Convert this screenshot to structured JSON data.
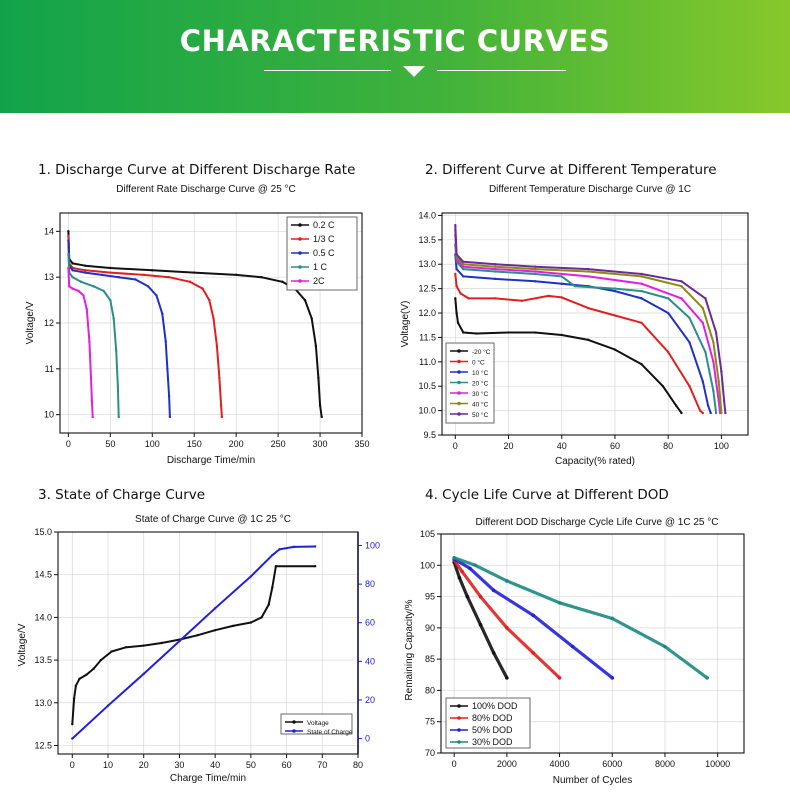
{
  "header": {
    "title": "CHARACTERISTIC CURVES"
  },
  "sections": [
    {
      "title": "1. Discharge Curve at Different Discharge Rate"
    },
    {
      "title": "2. Different Curve at Different Temperature"
    },
    {
      "title": "3. State of Charge Curve"
    },
    {
      "title": "4. Cycle Life Curve at Different DOD"
    }
  ],
  "chart_data": [
    {
      "type": "line",
      "title": "Different Rate Discharge Curve @ 25 °C",
      "xlabel": "Discharge Time/min",
      "ylabel": "Voltage/V",
      "xlim": [
        -10,
        350
      ],
      "ylim": [
        9.6,
        14.4
      ],
      "xticks": [
        0,
        50,
        100,
        150,
        200,
        250,
        300,
        350
      ],
      "yticks": [
        10,
        11,
        12,
        13,
        14
      ],
      "legend": "top-right",
      "series": [
        {
          "name": "0.2 C",
          "color": "#111111",
          "points": [
            [
              0,
              14
            ],
            [
              1,
              13.4
            ],
            [
              5,
              13.3
            ],
            [
              20,
              13.25
            ],
            [
              50,
              13.2
            ],
            [
              100,
              13.15
            ],
            [
              150,
              13.1
            ],
            [
              200,
              13.05
            ],
            [
              230,
              13
            ],
            [
              255,
              12.9
            ],
            [
              270,
              12.75
            ],
            [
              282,
              12.5
            ],
            [
              290,
              12.1
            ],
            [
              295,
              11.5
            ],
            [
              298,
              10.8
            ],
            [
              300,
              10.2
            ],
            [
              302,
              9.95
            ]
          ]
        },
        {
          "name": "1/3 C",
          "color": "#e02020",
          "points": [
            [
              0,
              13.9
            ],
            [
              1,
              13.3
            ],
            [
              5,
              13.2
            ],
            [
              20,
              13.15
            ],
            [
              50,
              13.1
            ],
            [
              90,
              13.05
            ],
            [
              120,
              13
            ],
            [
              145,
              12.9
            ],
            [
              160,
              12.75
            ],
            [
              168,
              12.5
            ],
            [
              173,
              12.1
            ],
            [
              177,
              11.5
            ],
            [
              180,
              10.8
            ],
            [
              182,
              10.2
            ],
            [
              183,
              9.95
            ]
          ]
        },
        {
          "name": "0.5 C",
          "color": "#2030c8",
          "points": [
            [
              0,
              13.8
            ],
            [
              1,
              13.25
            ],
            [
              5,
              13.15
            ],
            [
              20,
              13.1
            ],
            [
              40,
              13.05
            ],
            [
              60,
              13
            ],
            [
              80,
              12.95
            ],
            [
              95,
              12.8
            ],
            [
              105,
              12.6
            ],
            [
              112,
              12.2
            ],
            [
              116,
              11.6
            ],
            [
              118,
              11
            ],
            [
              120,
              10.4
            ],
            [
              121,
              9.95
            ]
          ]
        },
        {
          "name": "1 C",
          "color": "#2a8f8a",
          "points": [
            [
              0,
              13.5
            ],
            [
              1,
              13.1
            ],
            [
              5,
              13
            ],
            [
              15,
              12.9
            ],
            [
              30,
              12.8
            ],
            [
              42,
              12.7
            ],
            [
              50,
              12.5
            ],
            [
              54,
              12.1
            ],
            [
              57,
              11.4
            ],
            [
              59,
              10.6
            ],
            [
              60,
              9.95
            ]
          ]
        },
        {
          "name": "2C",
          "color": "#e020e0",
          "points": [
            [
              0,
              13.2
            ],
            [
              1,
              12.8
            ],
            [
              5,
              12.75
            ],
            [
              12,
              12.7
            ],
            [
              18,
              12.6
            ],
            [
              22,
              12.3
            ],
            [
              25,
              11.6
            ],
            [
              27,
              10.8
            ],
            [
              28,
              10.3
            ],
            [
              29,
              9.95
            ]
          ]
        }
      ]
    },
    {
      "type": "line",
      "title": "Different Temperature Discharge Curve @ 1C",
      "xlabel": "Capacity(% rated)",
      "ylabel": "Voltage(V)",
      "xlim": [
        -5,
        110
      ],
      "ylim": [
        9.5,
        14.05
      ],
      "xticks": [
        0,
        20,
        40,
        60,
        80,
        100
      ],
      "yticks": [
        9.5,
        10.0,
        10.5,
        11.0,
        11.5,
        12.0,
        12.5,
        13.0,
        13.5,
        14.0
      ],
      "legend": "bottom-left",
      "series": [
        {
          "name": "-20 °C",
          "color": "#111111",
          "points": [
            [
              0,
              12.3
            ],
            [
              0.5,
              12
            ],
            [
              1,
              11.8
            ],
            [
              3,
              11.6
            ],
            [
              8,
              11.58
            ],
            [
              20,
              11.6
            ],
            [
              30,
              11.6
            ],
            [
              40,
              11.55
            ],
            [
              50,
              11.45
            ],
            [
              60,
              11.25
            ],
            [
              70,
              10.95
            ],
            [
              78,
              10.5
            ],
            [
              83,
              10.1
            ],
            [
              85,
              9.95
            ]
          ]
        },
        {
          "name": "0 °C",
          "color": "#e02020",
          "points": [
            [
              0,
              12.8
            ],
            [
              0.5,
              12.55
            ],
            [
              2,
              12.4
            ],
            [
              5,
              12.3
            ],
            [
              15,
              12.3
            ],
            [
              25,
              12.25
            ],
            [
              35,
              12.35
            ],
            [
              40,
              12.32
            ],
            [
              50,
              12.1
            ],
            [
              60,
              11.95
            ],
            [
              70,
              11.8
            ],
            [
              80,
              11.2
            ],
            [
              88,
              10.5
            ],
            [
              92,
              10
            ],
            [
              93,
              9.95
            ]
          ]
        },
        {
          "name": "10 °C",
          "color": "#2030c8",
          "points": [
            [
              0,
              13.2
            ],
            [
              0.5,
              12.9
            ],
            [
              3,
              12.75
            ],
            [
              15,
              12.7
            ],
            [
              30,
              12.65
            ],
            [
              40,
              12.6
            ],
            [
              50,
              12.55
            ],
            [
              60,
              12.45
            ],
            [
              70,
              12.3
            ],
            [
              80,
              12
            ],
            [
              88,
              11.4
            ],
            [
              93,
              10.6
            ],
            [
              95,
              10.1
            ],
            [
              96,
              9.95
            ]
          ]
        },
        {
          "name": "20 °C",
          "color": "#2a8f8a",
          "points": [
            [
              0,
              13.4
            ],
            [
              0.5,
              13.05
            ],
            [
              3,
              12.9
            ],
            [
              15,
              12.85
            ],
            [
              30,
              12.8
            ],
            [
              40,
              12.75
            ],
            [
              45,
              12.55
            ],
            [
              60,
              12.5
            ],
            [
              70,
              12.45
            ],
            [
              80,
              12.3
            ],
            [
              88,
              11.9
            ],
            [
              94,
              11.2
            ],
            [
              97,
              10.4
            ],
            [
              98,
              9.95
            ]
          ]
        },
        {
          "name": "30 °C",
          "color": "#e020e0",
          "points": [
            [
              0,
              13.6
            ],
            [
              0.5,
              13.1
            ],
            [
              3,
              12.95
            ],
            [
              15,
              12.9
            ],
            [
              30,
              12.85
            ],
            [
              50,
              12.75
            ],
            [
              70,
              12.6
            ],
            [
              85,
              12.3
            ],
            [
              93,
              11.8
            ],
            [
              97,
              11
            ],
            [
              99,
              10.2
            ],
            [
              99.5,
              9.95
            ]
          ]
        },
        {
          "name": "40 °C",
          "color": "#8a8a10",
          "points": [
            [
              0,
              13.7
            ],
            [
              0.5,
              13.15
            ],
            [
              3,
              13
            ],
            [
              15,
              12.95
            ],
            [
              30,
              12.9
            ],
            [
              50,
              12.85
            ],
            [
              70,
              12.75
            ],
            [
              85,
              12.55
            ],
            [
              93,
              12.1
            ],
            [
              97,
              11.4
            ],
            [
              99,
              10.6
            ],
            [
              100,
              9.95
            ]
          ]
        },
        {
          "name": "50 °C",
          "color": "#6a2a9a",
          "points": [
            [
              0,
              13.8
            ],
            [
              0.5,
              13.2
            ],
            [
              3,
              13.05
            ],
            [
              15,
              13
            ],
            [
              30,
              12.95
            ],
            [
              50,
              12.9
            ],
            [
              70,
              12.8
            ],
            [
              85,
              12.65
            ],
            [
              94,
              12.3
            ],
            [
              98,
              11.6
            ],
            [
              100,
              10.8
            ],
            [
              101,
              10.2
            ],
            [
              101.5,
              9.95
            ]
          ]
        }
      ]
    },
    {
      "type": "line",
      "title": "State of Charge Curve @ 1C  25 °C",
      "xlabel": "Charge Time/min",
      "ylabel": "Voltage/V",
      "y2label": "",
      "xlim": [
        -4,
        80
      ],
      "ylim": [
        12.4,
        15.0
      ],
      "y2lim": [
        -8,
        107
      ],
      "xticks": [
        0,
        10,
        20,
        30,
        40,
        50,
        60,
        70,
        80
      ],
      "yticks": [
        12.5,
        13.0,
        13.5,
        14.0,
        14.5,
        15.0
      ],
      "y2ticks": [
        0,
        20,
        40,
        60,
        80,
        100
      ],
      "legend": "bottom-right",
      "series": [
        {
          "name": "Voltage",
          "axis": "left",
          "color": "#111111",
          "points": [
            [
              0,
              12.75
            ],
            [
              0.5,
              13.05
            ],
            [
              1,
              13.2
            ],
            [
              2,
              13.28
            ],
            [
              4,
              13.33
            ],
            [
              6,
              13.4
            ],
            [
              8,
              13.5
            ],
            [
              11,
              13.6
            ],
            [
              15,
              13.65
            ],
            [
              20,
              13.67
            ],
            [
              25,
              13.7
            ],
            [
              30,
              13.74
            ],
            [
              35,
              13.79
            ],
            [
              40,
              13.85
            ],
            [
              45,
              13.9
            ],
            [
              50,
              13.94
            ],
            [
              53,
              14.0
            ],
            [
              55,
              14.15
            ],
            [
              56,
              14.35
            ],
            [
              57,
              14.6
            ],
            [
              68,
              14.6
            ]
          ]
        },
        {
          "name": "State of Charge",
          "axis": "right",
          "color": "#2020d8",
          "points": [
            [
              0,
              0
            ],
            [
              10,
              17
            ],
            [
              20,
              33.5
            ],
            [
              30,
              50.5
            ],
            [
              40,
              67.5
            ],
            [
              50,
              84
            ],
            [
              56,
              95
            ],
            [
              58,
              98
            ],
            [
              62,
              99.3
            ],
            [
              68,
              99.5
            ]
          ]
        }
      ]
    },
    {
      "type": "scatter",
      "title": "Different DOD Discharge Cycle Life Curve @ 1C 25 °C",
      "xlabel": "Number of Cycles",
      "ylabel": "Remaining Capacity/%",
      "xlim": [
        -500,
        11000
      ],
      "ylim": [
        70,
        105
      ],
      "xticks": [
        0,
        2000,
        4000,
        6000,
        8000,
        10000
      ],
      "yticks": [
        70,
        75,
        80,
        85,
        90,
        95,
        100,
        105
      ],
      "legend": "bottom-left",
      "series": [
        {
          "name": "100% DOD",
          "color": "#111111",
          "points": [
            [
              0,
              100.5
            ],
            [
              200,
              98
            ],
            [
              500,
              95
            ],
            [
              1000,
              90.5
            ],
            [
              1500,
              86
            ],
            [
              2000,
              82
            ]
          ]
        },
        {
          "name": "80% DOD",
          "color": "#e02020",
          "points": [
            [
              0,
              100.8
            ],
            [
              300,
              99
            ],
            [
              1000,
              95
            ],
            [
              2000,
              90
            ],
            [
              3000,
              86
            ],
            [
              4000,
              82
            ]
          ]
        },
        {
          "name": "50% DOD",
          "color": "#2020d8",
          "points": [
            [
              0,
              101
            ],
            [
              600,
              99.5
            ],
            [
              1500,
              96
            ],
            [
              3000,
              92
            ],
            [
              4500,
              87
            ],
            [
              6000,
              82
            ]
          ]
        },
        {
          "name": "30% DOD",
          "color": "#1a8a80",
          "points": [
            [
              0,
              101.2
            ],
            [
              800,
              100
            ],
            [
              2000,
              97.5
            ],
            [
              4000,
              94
            ],
            [
              6000,
              91.5
            ],
            [
              8000,
              87
            ],
            [
              9600,
              82
            ]
          ]
        }
      ]
    }
  ]
}
